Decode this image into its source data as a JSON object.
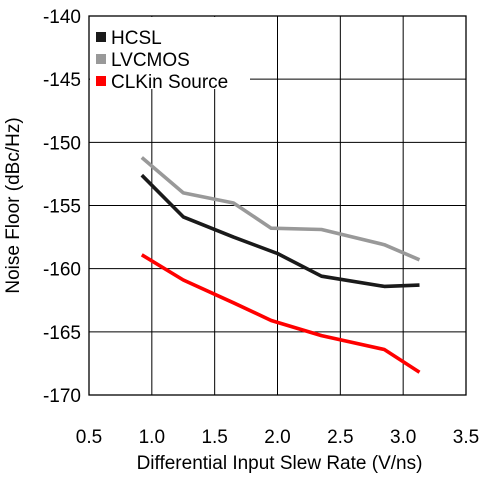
{
  "chart_data": {
    "type": "line",
    "title": "",
    "xlabel": "Differential Input Slew Rate (V/ns)",
    "ylabel": "Noise Floor (dBc/Hz)",
    "xlim": [
      0.5,
      3.5
    ],
    "ylim": [
      -170,
      -140
    ],
    "xticks": [
      0.5,
      1.0,
      1.5,
      2.0,
      2.5,
      3.0,
      3.5
    ],
    "xtick_labels": [
      "0.5",
      "1.0",
      "1.5",
      "2.0",
      "2.5",
      "3.0",
      "3.5"
    ],
    "yticks": [
      -140,
      -145,
      -150,
      -155,
      -160,
      -165,
      -170
    ],
    "ytick_labels": [
      "-140",
      "-145",
      "-150",
      "-155",
      "-160",
      "-165",
      "-170"
    ],
    "grid": true,
    "legend_position": "top-left",
    "series": [
      {
        "name": "HCSL",
        "color": "#1a1a1a",
        "x": [
          0.92,
          1.25,
          1.65,
          2.0,
          2.35,
          2.85,
          3.13
        ],
        "y": [
          -152.6,
          -155.9,
          -157.5,
          -158.8,
          -160.6,
          -161.4,
          -161.3
        ]
      },
      {
        "name": "LVCMOS",
        "color": "#999999",
        "x": [
          0.92,
          1.25,
          1.65,
          1.95,
          2.35,
          2.85,
          3.13
        ],
        "y": [
          -151.2,
          -154.0,
          -154.8,
          -156.8,
          -156.9,
          -158.1,
          -159.3
        ]
      },
      {
        "name": "CLKin Source",
        "color": "#ff0000",
        "x": [
          0.92,
          1.25,
          1.65,
          1.95,
          2.35,
          2.85,
          3.13
        ],
        "y": [
          -158.9,
          -160.9,
          -162.7,
          -164.1,
          -165.3,
          -166.4,
          -168.2
        ]
      }
    ]
  }
}
